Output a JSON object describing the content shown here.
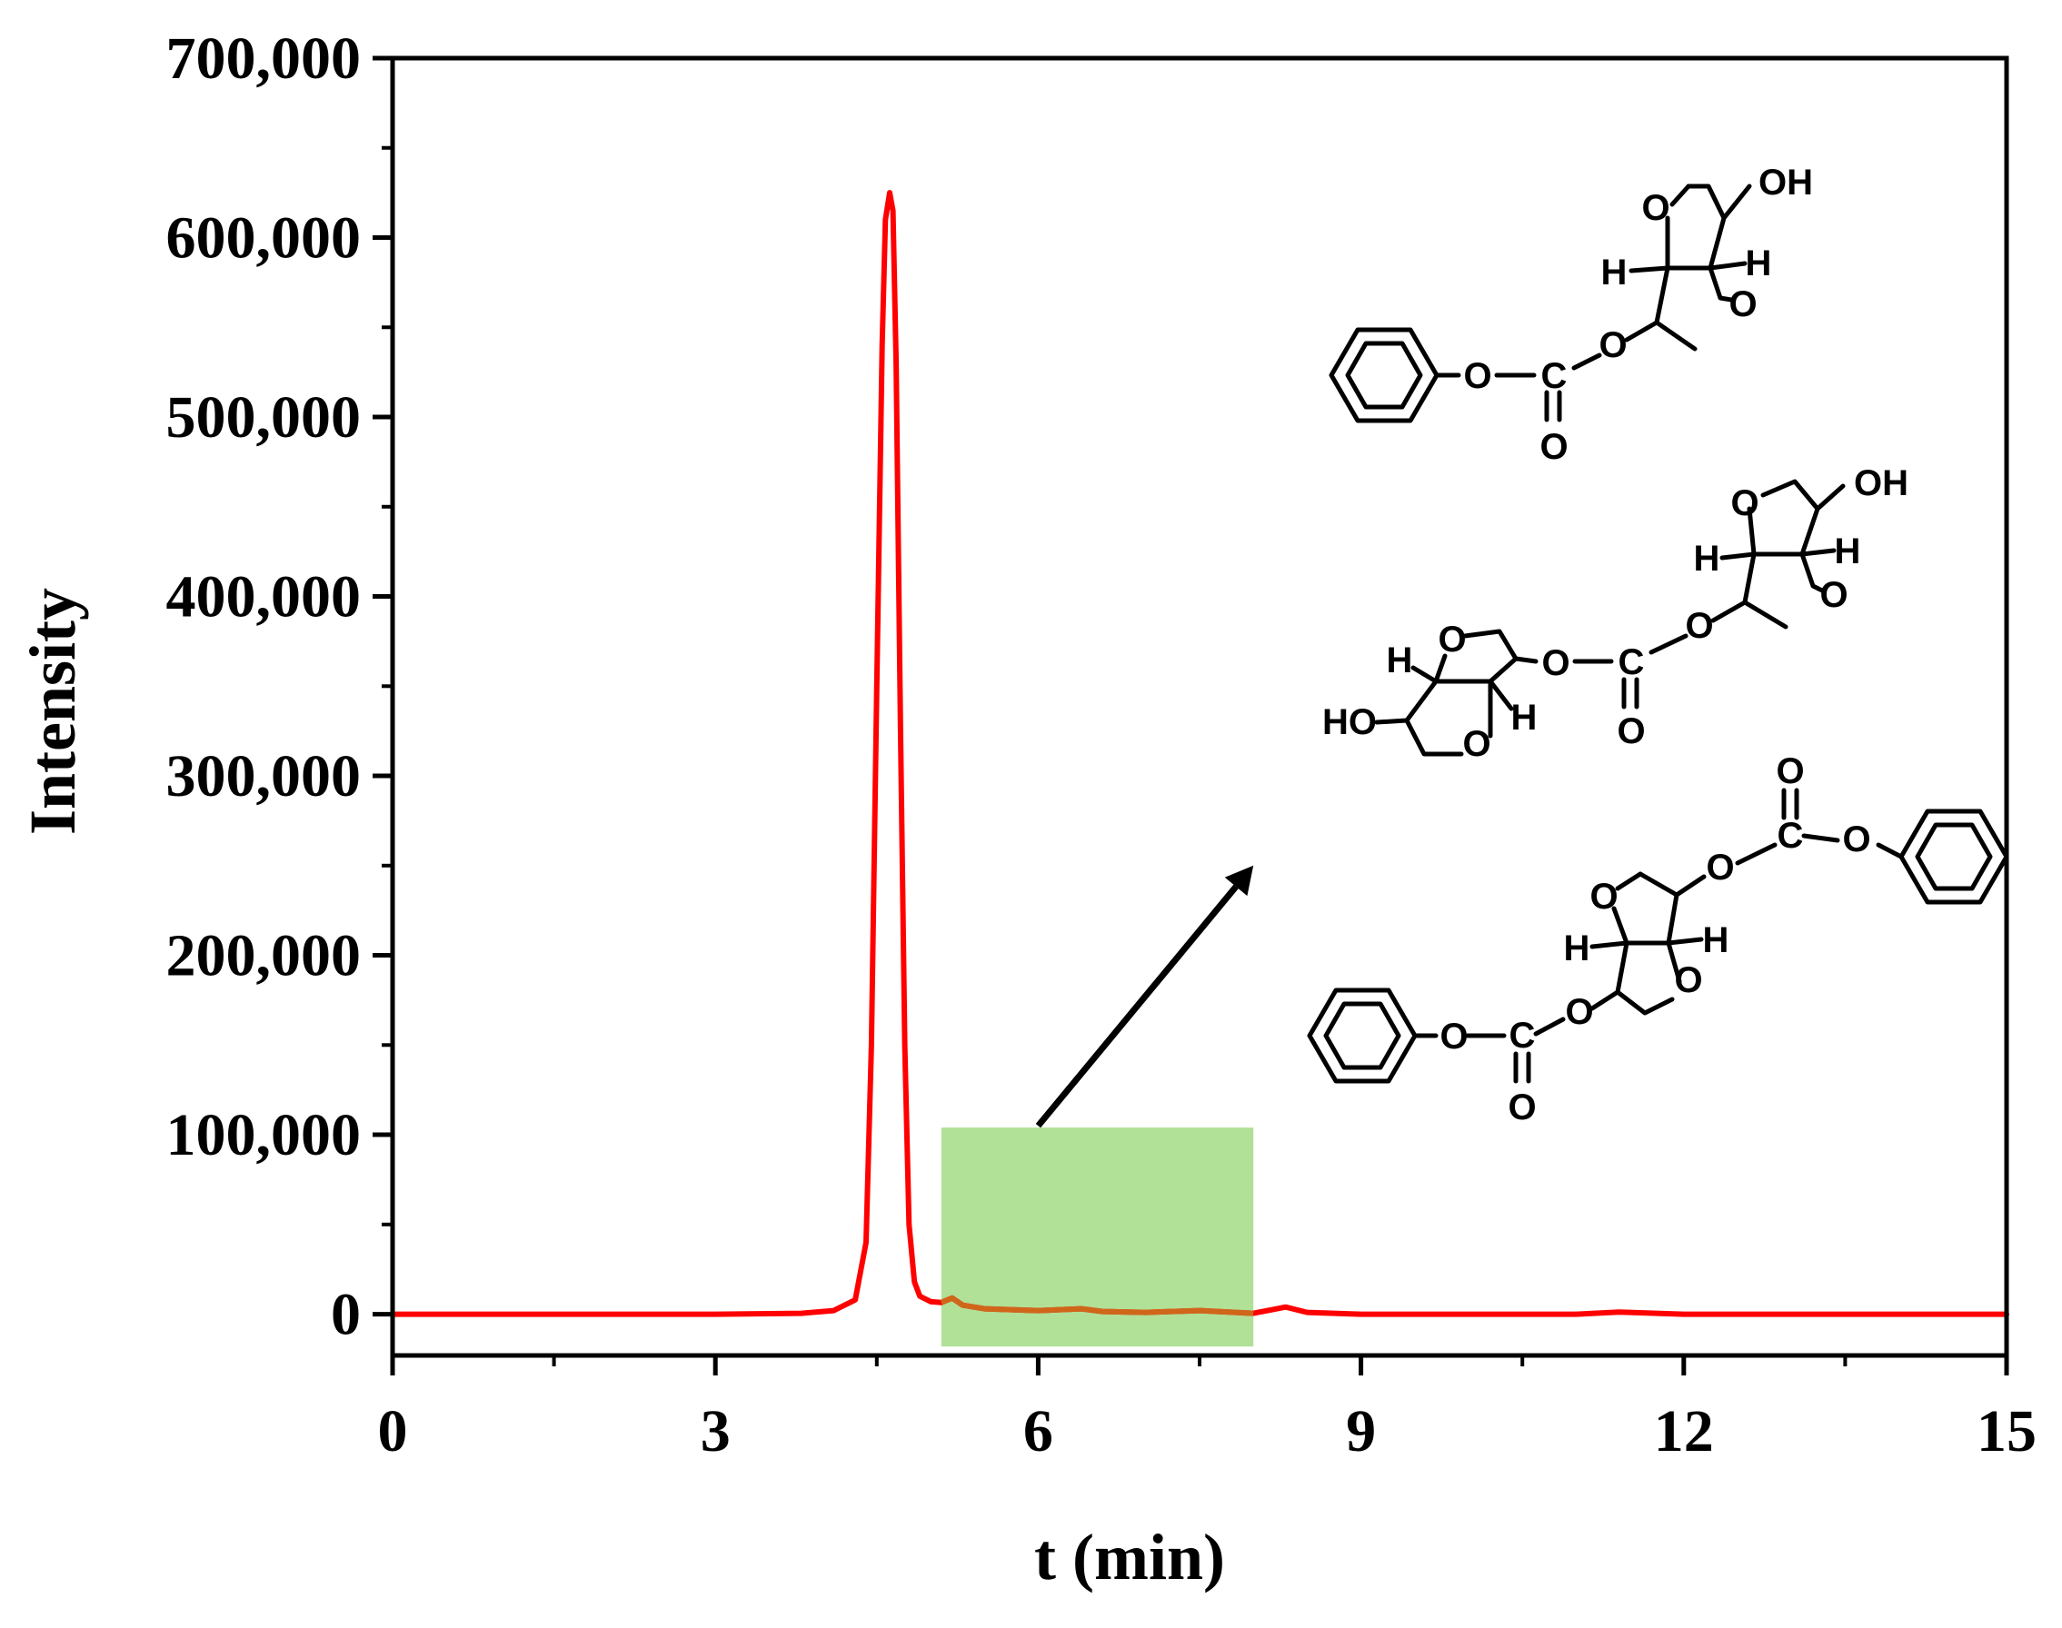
{
  "chart_data": {
    "type": "line",
    "title": "",
    "xlabel": "t (min)",
    "ylabel": "Intensity",
    "xlim": [
      0,
      15
    ],
    "ylim": [
      -23000,
      700000
    ],
    "x_ticks": [
      0,
      3,
      6,
      9,
      12,
      15
    ],
    "x_tick_labels": [
      "0",
      "3",
      "6",
      "9",
      "12",
      "15"
    ],
    "y_ticks": [
      0,
      100000,
      200000,
      300000,
      400000,
      500000,
      600000,
      700000
    ],
    "y_tick_labels": [
      "0",
      "100,000",
      "200,000",
      "300,000",
      "400,000",
      "500,000",
      "600,000",
      "700,000"
    ],
    "grid": false,
    "series": [
      {
        "color": "#ff0000",
        "x": [
          0,
          1.0,
          2.0,
          3.0,
          3.8,
          4.1,
          4.3,
          4.4,
          4.45,
          4.5,
          4.55,
          4.58,
          4.62,
          4.65,
          4.68,
          4.72,
          4.76,
          4.8,
          4.85,
          4.9,
          5.0,
          5.1,
          5.2,
          5.3,
          5.5,
          6.0,
          6.4,
          6.6,
          7.0,
          7.5,
          8.0,
          8.3,
          8.5,
          9.0,
          10.0,
          11.0,
          11.4,
          12.0,
          13.0,
          14.0,
          15.0
        ],
        "y": [
          0,
          0,
          0,
          0,
          500,
          2000,
          8000,
          40000,
          150000,
          350000,
          540000,
          610000,
          625000,
          615000,
          530000,
          330000,
          150000,
          50000,
          18000,
          10000,
          7000,
          6500,
          9000,
          5000,
          3000,
          2000,
          3000,
          1500,
          1000,
          2000,
          500,
          4000,
          1000,
          0,
          0,
          0,
          1200,
          0,
          0,
          0,
          0
        ]
      }
    ],
    "highlight": {
      "x_range": [
        5.1,
        8.0
      ],
      "y_range": [
        -18000,
        104000
      ],
      "color": "#a8dd8c"
    },
    "annotation_arrow": {
      "from": [
        6.0,
        105000
      ],
      "to": [
        8.0,
        250000
      ]
    }
  },
  "structures": {
    "s1": {
      "oh": "OH",
      "h_left": "H",
      "h_right": "H",
      "o_ring_top": "O",
      "o_ring_bottom": "O",
      "o_link": "O",
      "o_ester": "O",
      "c": "C",
      "o_carbonyl": "O"
    },
    "s2": {
      "oh_top": "OH",
      "ho_bottom": "HO",
      "h1": "H",
      "h2": "H",
      "h3": "H",
      "h4": "H",
      "o1": "O",
      "o2": "O",
      "o3": "O",
      "o4": "O",
      "o_link1": "O",
      "o_link2": "O",
      "c": "C",
      "o_carbonyl": "O"
    },
    "s3": {
      "h_left": "H",
      "h_right": "H",
      "o_ring_top": "O",
      "o_ring_bottom": "O",
      "o_link_top": "O",
      "o_link_bottom": "O",
      "o_ester_top": "O",
      "o_ester_bottom": "O",
      "c_top": "C",
      "c_bottom": "C",
      "o_carbonyl_top": "O",
      "o_carbonyl_bottom": "O"
    }
  }
}
